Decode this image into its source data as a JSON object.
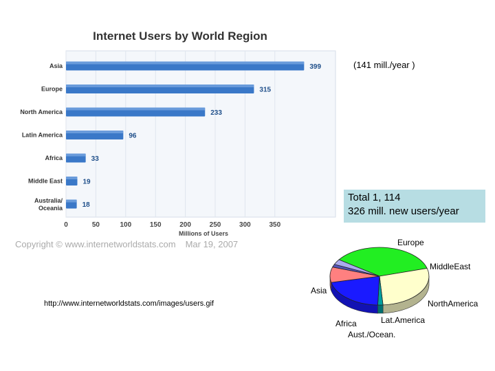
{
  "notes": {
    "rate": "(141 mill./year )",
    "total_line1": "Total 1, 114",
    "total_line2": "326 mill. new users/year",
    "copyright_part1": "Copyright © www.internetworldstats.com",
    "copyright_part2": "Mar 19, 2007",
    "source_url": "http://www.internetworldstats.com/images/users.gif"
  },
  "colors": {
    "bar": "#3a78c8",
    "bar_label": "#1f4f8a",
    "panel": "#f4f7fb",
    "panel_border": "#d6dee8"
  },
  "chart_data": [
    {
      "type": "bar",
      "orientation": "horizontal",
      "title": "Internet Users by World Region",
      "xlabel": "Millions of Users",
      "ylabel": "",
      "categories": [
        "Asia",
        "Europe",
        "North America",
        "Latin America",
        "Africa",
        "Middle East",
        "Australia/ Oceania"
      ],
      "values": [
        399,
        315,
        233,
        96,
        33,
        19,
        18
      ],
      "value_labels": [
        "399",
        "315",
        "233",
        "96",
        "33",
        "19",
        "18"
      ],
      "xlim": [
        0,
        440
      ],
      "xticks": [
        "0",
        "50",
        "100",
        "150",
        "200",
        "250",
        "300",
        "350"
      ],
      "grid": true
    },
    {
      "type": "pie",
      "style": "3d",
      "labels": [
        "Asia",
        "Europe",
        "Middle East",
        "North America",
        "Lat. America",
        "Aust./Ocean.",
        "Africa"
      ],
      "values": [
        399,
        315,
        19,
        233,
        96,
        18,
        33
      ],
      "label_texts": [
        "Asia",
        "Europe",
        "MiddleEast",
        "NorthAmerica",
        "Lat.America",
        "Aust./Ocean.",
        "Africa"
      ],
      "colors": [
        "#22ee22",
        "#ffffcc",
        "#00a0a0",
        "#1a1aff",
        "#ff8080",
        "#5555bb",
        "#aaaaee"
      ]
    }
  ]
}
